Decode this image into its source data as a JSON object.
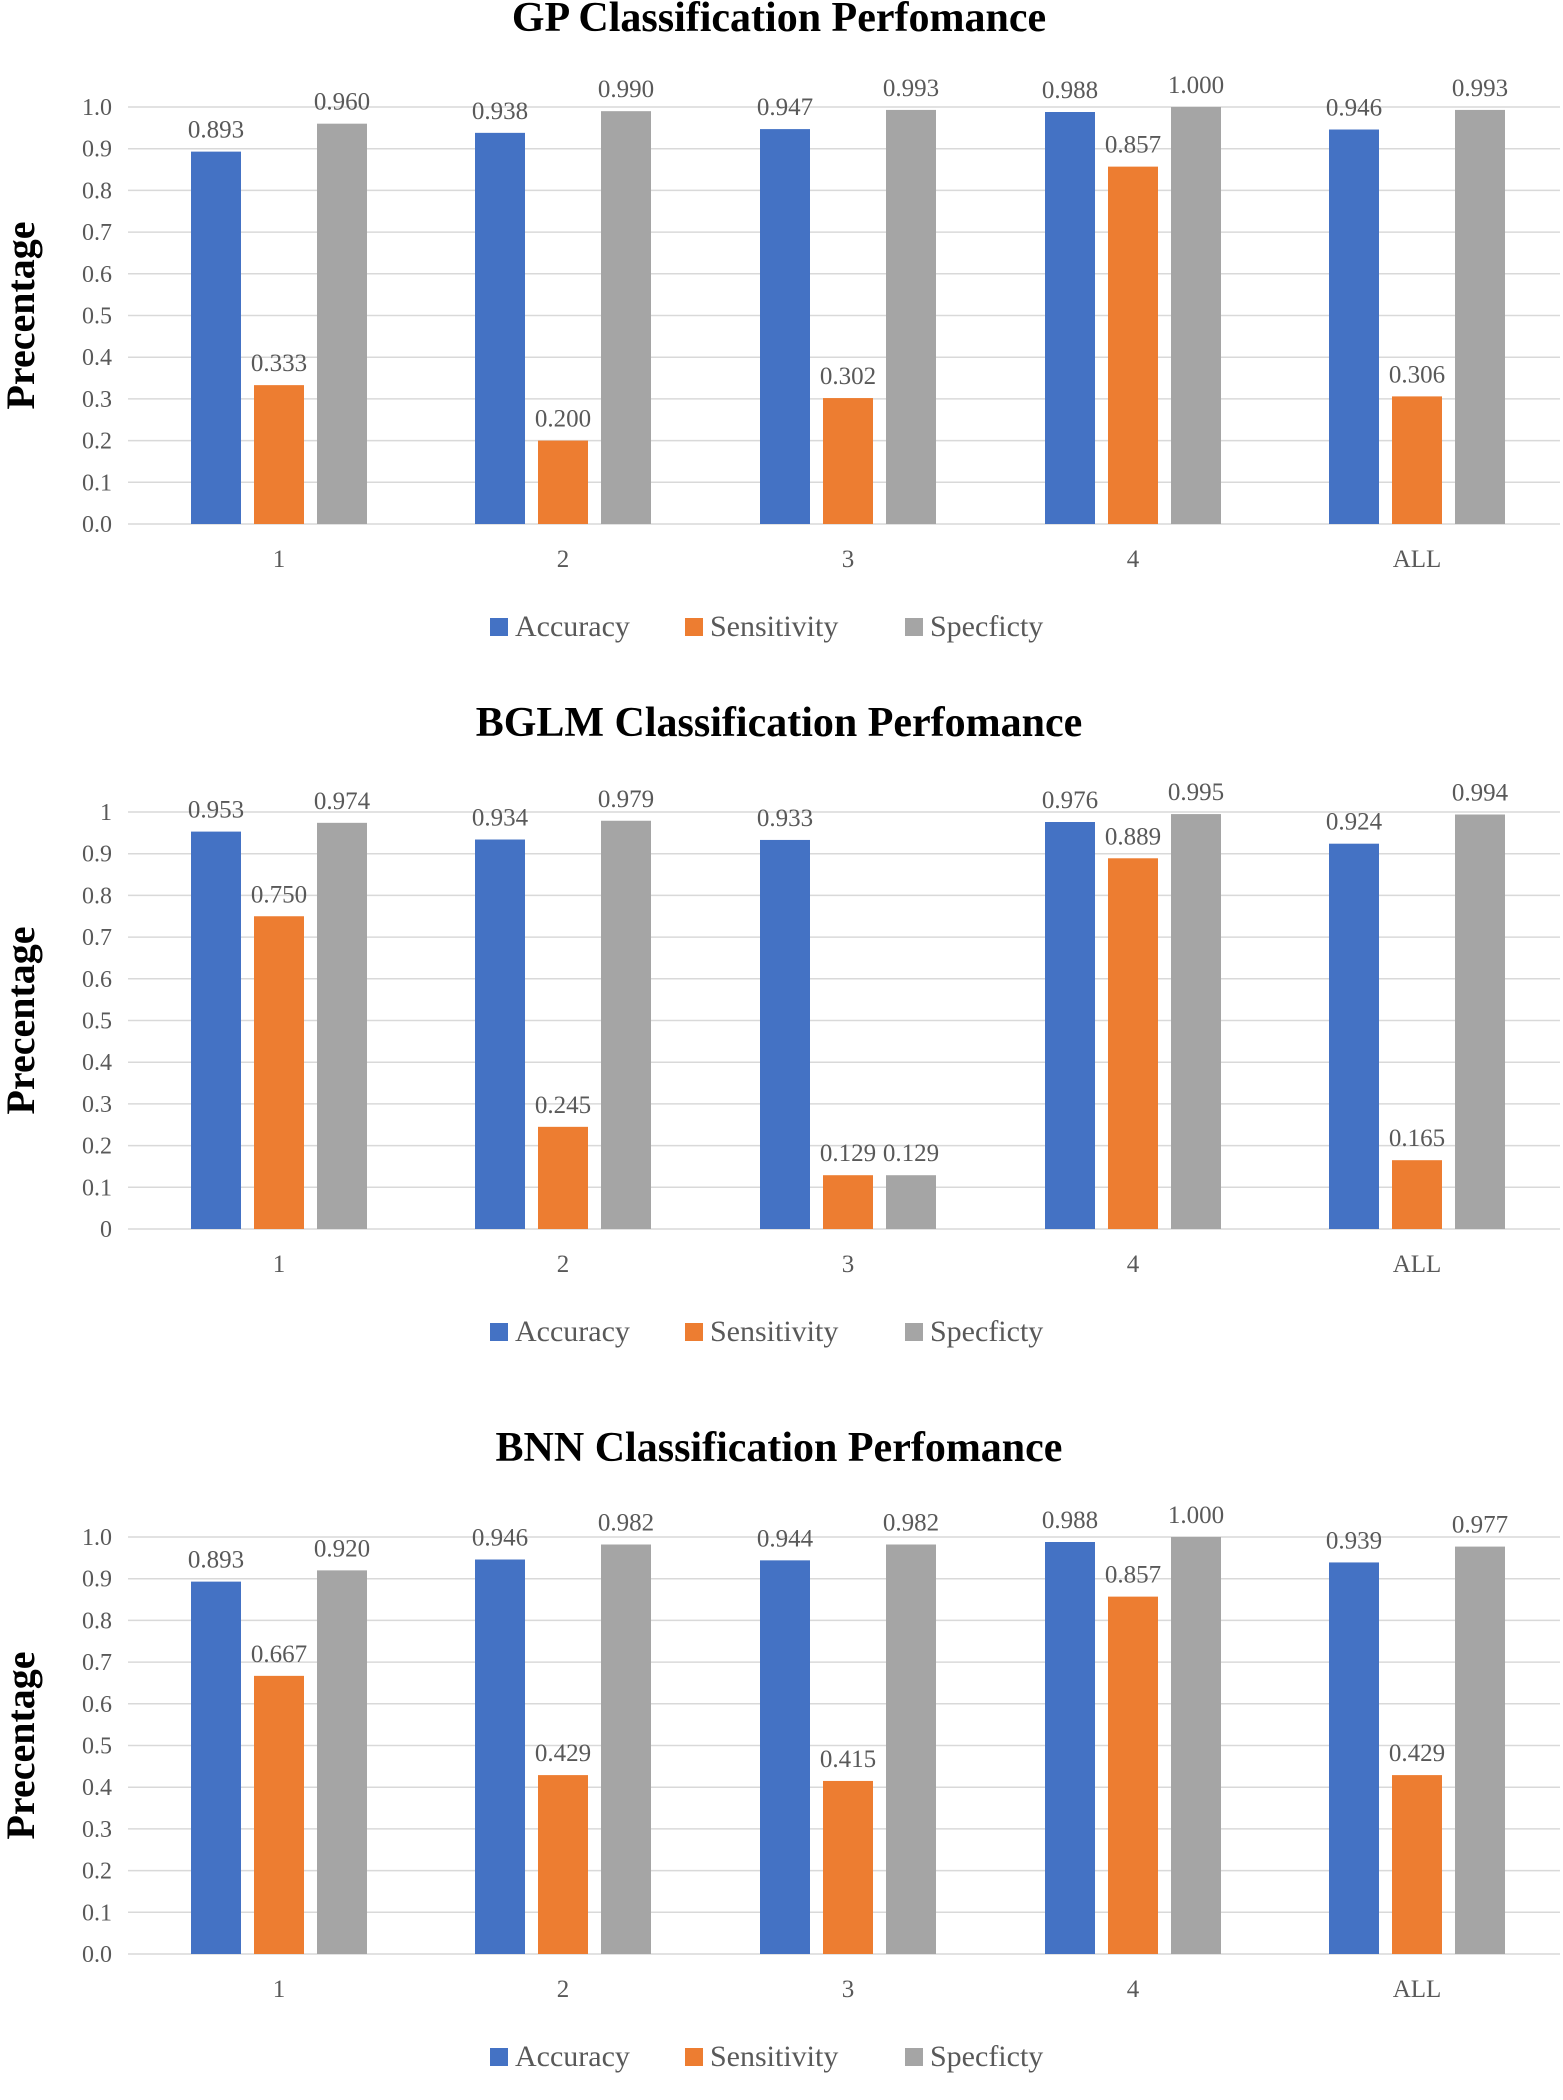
{
  "colors": {
    "accuracy": "#4472C4",
    "sensitivity": "#ED7D31",
    "specificity": "#A5A5A5",
    "grid": "#D9D9D9",
    "text": "#595959",
    "title": "#000000"
  },
  "chart_data": [
    {
      "type": "bar",
      "title": "GP Classification Perfomance",
      "ylabel": "Precentage",
      "xlabel": "",
      "ylim": [
        0,
        1
      ],
      "yticks": [
        "0.0",
        "0.1",
        "0.2",
        "0.3",
        "0.4",
        "0.5",
        "0.6",
        "0.7",
        "0.8",
        "0.9",
        "1.0"
      ],
      "categories": [
        "1",
        "2",
        "3",
        "4",
        "ALL"
      ],
      "legend_position": "bottom",
      "series": [
        {
          "name": "Accuracy",
          "values": [
            0.893,
            0.938,
            0.947,
            0.988,
            0.946
          ],
          "labels": [
            "0.893",
            "0.938",
            "0.947",
            "0.988",
            "0.946"
          ]
        },
        {
          "name": "Sensitivity",
          "values": [
            0.333,
            0.2,
            0.302,
            0.857,
            0.306
          ],
          "labels": [
            "0.333",
            "0.200",
            "0.302",
            "0.857",
            "0.306"
          ]
        },
        {
          "name": "Specficty",
          "values": [
            0.96,
            0.99,
            0.993,
            1.0,
            0.993
          ],
          "labels": [
            "0.960",
            "0.990",
            "0.993",
            "1.000",
            "0.993"
          ]
        }
      ]
    },
    {
      "type": "bar",
      "title": "BGLM Classification Perfomance",
      "ylabel": "Precentage",
      "xlabel": "",
      "ylim": [
        0,
        1
      ],
      "yticks": [
        "0",
        "0.1",
        "0.2",
        "0.3",
        "0.4",
        "0.5",
        "0.6",
        "0.7",
        "0.8",
        "0.9",
        "1"
      ],
      "categories": [
        "1",
        "2",
        "3",
        "4",
        "ALL"
      ],
      "legend_position": "bottom",
      "series": [
        {
          "name": "Accuracy",
          "values": [
            0.953,
            0.934,
            0.933,
            0.976,
            0.924
          ],
          "labels": [
            "0.953",
            "0.934",
            "0.933",
            "0.976",
            "0.924"
          ]
        },
        {
          "name": "Sensitivity",
          "values": [
            0.75,
            0.245,
            0.129,
            0.889,
            0.165
          ],
          "labels": [
            "0.750",
            "0.245",
            "0.129",
            "0.889",
            "0.165"
          ]
        },
        {
          "name": "Specficty",
          "values": [
            0.974,
            0.979,
            0.129,
            0.995,
            0.994
          ],
          "labels": [
            "0.974",
            "0.979",
            "0.129",
            "0.995",
            "0.994"
          ]
        }
      ]
    },
    {
      "type": "bar",
      "title": "BNN Classification Perfomance",
      "ylabel": "Precentage",
      "xlabel": "",
      "ylim": [
        0,
        1
      ],
      "yticks": [
        "0.0",
        "0.1",
        "0.2",
        "0.3",
        "0.4",
        "0.5",
        "0.6",
        "0.7",
        "0.8",
        "0.9",
        "1.0"
      ],
      "categories": [
        "1",
        "2",
        "3",
        "4",
        "ALL"
      ],
      "legend_position": "bottom",
      "series": [
        {
          "name": "Accuracy",
          "values": [
            0.893,
            0.946,
            0.944,
            0.988,
            0.939
          ],
          "labels": [
            "0.893",
            "0.946",
            "0.944",
            "0.988",
            "0.939"
          ]
        },
        {
          "name": "Sensitivity",
          "values": [
            0.667,
            0.429,
            0.415,
            0.857,
            0.429
          ],
          "labels": [
            "0.667",
            "0.429",
            "0.415",
            "0.857",
            "0.429"
          ]
        },
        {
          "name": "Specficty",
          "values": [
            0.92,
            0.982,
            0.982,
            1.0,
            0.977
          ],
          "labels": [
            "0.920",
            "0.982",
            "0.982",
            "1.000",
            "0.977"
          ]
        }
      ]
    }
  ]
}
